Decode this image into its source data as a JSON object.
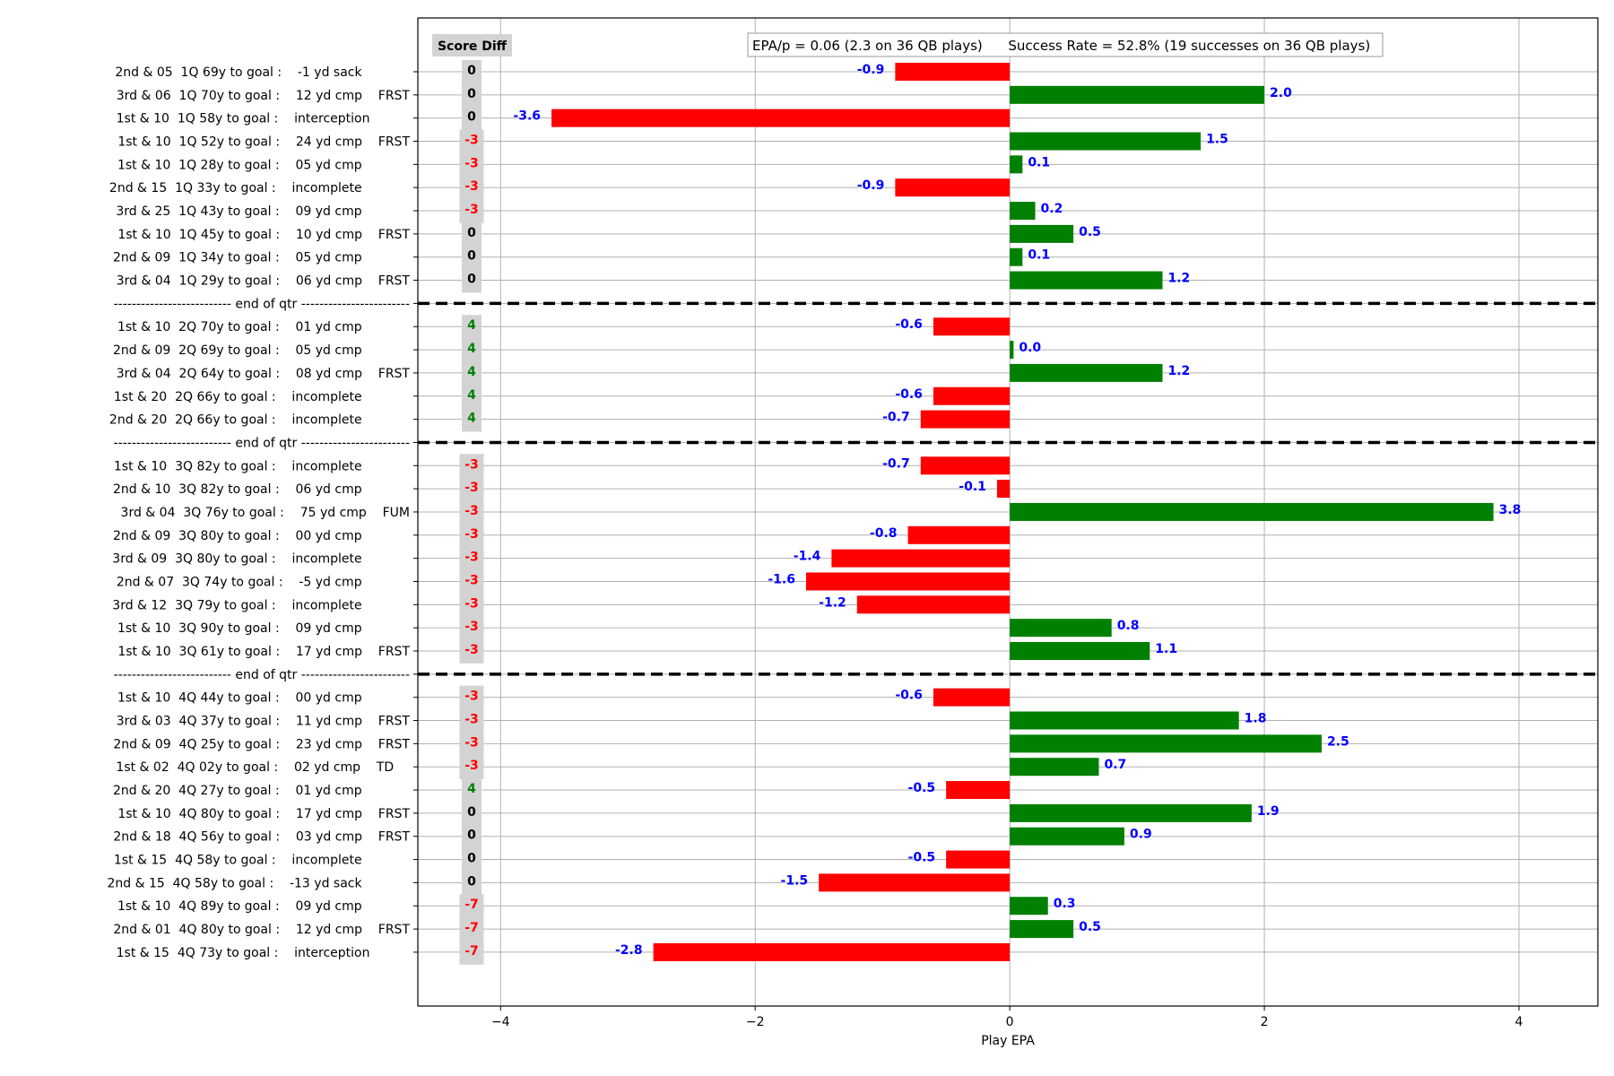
{
  "chart_data": {
    "type": "bar",
    "orientation": "horizontal",
    "xlabel": "Play EPA",
    "xlim": [
      -4.65,
      4.62
    ],
    "xticks": [
      -4,
      -2,
      0,
      2,
      4
    ],
    "xtick_labels": [
      "−4",
      "−2",
      "0",
      "2",
      "4"
    ],
    "grid": true,
    "score_diff_header": "Score Diff",
    "summary": "EPA/p = 0.06 (2.3 on 36 QB plays)      Success Rate = 52.8% (19 successes on 36 QB plays)",
    "colors": {
      "positive_bar": "#008000",
      "negative_bar": "#ff0000",
      "value_label": "#0000ff",
      "score_positive": "#008000",
      "score_negative": "#ff0000",
      "score_zero": "#000000",
      "score_box": "#d3d3d3",
      "separator_line": "#000000"
    },
    "rows": [
      {
        "type": "play",
        "label": "2nd & 05  1Q 69y to goal :    -1 yd sack            ",
        "epa": -0.9,
        "value_label": "-0.9",
        "score_diff": "0"
      },
      {
        "type": "play",
        "label": "3rd & 06  1Q 70y to goal :    12 yd cmp    FRST",
        "epa": 2.0,
        "value_label": "2.0",
        "score_diff": "0"
      },
      {
        "type": "play",
        "label": "1st & 10  1Q 58y to goal :    interception          ",
        "epa": -3.6,
        "value_label": "-3.6",
        "score_diff": "0"
      },
      {
        "type": "play",
        "label": "1st & 10  1Q 52y to goal :    24 yd cmp    FRST",
        "epa": 1.5,
        "value_label": "1.5",
        "score_diff": "-3"
      },
      {
        "type": "play",
        "label": "1st & 10  1Q 28y to goal :    05 yd cmp            ",
        "epa": 0.1,
        "value_label": "0.1",
        "score_diff": "-3"
      },
      {
        "type": "play",
        "label": "2nd & 15  1Q 33y to goal :    incomplete            ",
        "epa": -0.9,
        "value_label": "-0.9",
        "score_diff": "-3"
      },
      {
        "type": "play",
        "label": "3rd & 25  1Q 43y to goal :    09 yd cmp            ",
        "epa": 0.2,
        "value_label": "0.2",
        "score_diff": "-3"
      },
      {
        "type": "play",
        "label": "1st & 10  1Q 45y to goal :    10 yd cmp    FRST",
        "epa": 0.5,
        "value_label": "0.5",
        "score_diff": "0"
      },
      {
        "type": "play",
        "label": "2nd & 09  1Q 34y to goal :    05 yd cmp            ",
        "epa": 0.1,
        "value_label": "0.1",
        "score_diff": "0"
      },
      {
        "type": "play",
        "label": "3rd & 04  1Q 29y to goal :    06 yd cmp    FRST",
        "epa": 1.2,
        "value_label": "1.2",
        "score_diff": "0"
      },
      {
        "type": "separator",
        "label": "-------------------------- end of qtr ------------------------"
      },
      {
        "type": "play",
        "label": "1st & 10  2Q 70y to goal :    01 yd cmp            ",
        "epa": -0.6,
        "value_label": "-0.6",
        "score_diff": "4"
      },
      {
        "type": "play",
        "label": "2nd & 09  2Q 69y to goal :    05 yd cmp            ",
        "epa": 0.03,
        "value_label": "0.0",
        "score_diff": "4"
      },
      {
        "type": "play",
        "label": "3rd & 04  2Q 64y to goal :    08 yd cmp    FRST",
        "epa": 1.2,
        "value_label": "1.2",
        "score_diff": "4"
      },
      {
        "type": "play",
        "label": "1st & 20  2Q 66y to goal :    incomplete            ",
        "epa": -0.6,
        "value_label": "-0.6",
        "score_diff": "4"
      },
      {
        "type": "play",
        "label": "2nd & 20  2Q 66y to goal :    incomplete            ",
        "epa": -0.7,
        "value_label": "-0.7",
        "score_diff": "4"
      },
      {
        "type": "separator",
        "label": "-------------------------- end of qtr ------------------------"
      },
      {
        "type": "play",
        "label": "1st & 10  3Q 82y to goal :    incomplete            ",
        "epa": -0.7,
        "value_label": "-0.7",
        "score_diff": "-3"
      },
      {
        "type": "play",
        "label": "2nd & 10  3Q 82y to goal :    06 yd cmp            ",
        "epa": -0.1,
        "value_label": "-0.1",
        "score_diff": "-3"
      },
      {
        "type": "play",
        "label": "3rd & 04  3Q 76y to goal :    75 yd cmp    FUM",
        "epa": 3.8,
        "value_label": "3.8",
        "score_diff": "-3"
      },
      {
        "type": "play",
        "label": "2nd & 09  3Q 80y to goal :    00 yd cmp            ",
        "epa": -0.8,
        "value_label": "-0.8",
        "score_diff": "-3"
      },
      {
        "type": "play",
        "label": "3rd & 09  3Q 80y to goal :    incomplete            ",
        "epa": -1.4,
        "value_label": "-1.4",
        "score_diff": "-3"
      },
      {
        "type": "play",
        "label": "2nd & 07  3Q 74y to goal :    -5 yd cmp            ",
        "epa": -1.6,
        "value_label": "-1.6",
        "score_diff": "-3"
      },
      {
        "type": "play",
        "label": "3rd & 12  3Q 79y to goal :    incomplete            ",
        "epa": -1.2,
        "value_label": "-1.2",
        "score_diff": "-3"
      },
      {
        "type": "play",
        "label": "1st & 10  3Q 90y to goal :    09 yd cmp            ",
        "epa": 0.8,
        "value_label": "0.8",
        "score_diff": "-3"
      },
      {
        "type": "play",
        "label": "1st & 10  3Q 61y to goal :    17 yd cmp    FRST",
        "epa": 1.1,
        "value_label": "1.1",
        "score_diff": "-3"
      },
      {
        "type": "separator",
        "label": "-------------------------- end of qtr ------------------------"
      },
      {
        "type": "play",
        "label": "1st & 10  4Q 44y to goal :    00 yd cmp            ",
        "epa": -0.6,
        "value_label": "-0.6",
        "score_diff": "-3"
      },
      {
        "type": "play",
        "label": "3rd & 03  4Q 37y to goal :    11 yd cmp    FRST",
        "epa": 1.8,
        "value_label": "1.8",
        "score_diff": "-3"
      },
      {
        "type": "play",
        "label": "2nd & 09  4Q 25y to goal :    23 yd cmp    FRST",
        "epa": 2.45,
        "value_label": "2.5",
        "score_diff": "-3"
      },
      {
        "type": "play",
        "label": "1st & 02  4Q 02y to goal :    02 yd cmp    TD    ",
        "epa": 0.7,
        "value_label": "0.7",
        "score_diff": "-3"
      },
      {
        "type": "play",
        "label": "2nd & 20  4Q 27y to goal :    01 yd cmp            ",
        "epa": -0.5,
        "value_label": "-0.5",
        "score_diff": "4"
      },
      {
        "type": "play",
        "label": "1st & 10  4Q 80y to goal :    17 yd cmp    FRST",
        "epa": 1.9,
        "value_label": "1.9",
        "score_diff": "0"
      },
      {
        "type": "play",
        "label": "2nd & 18  4Q 56y to goal :    03 yd cmp    FRST",
        "epa": 0.9,
        "value_label": "0.9",
        "score_diff": "0"
      },
      {
        "type": "play",
        "label": "1st & 15  4Q 58y to goal :    incomplete            ",
        "epa": -0.5,
        "value_label": "-0.5",
        "score_diff": "0"
      },
      {
        "type": "play",
        "label": "2nd & 15  4Q 58y to goal :    -13 yd sack            ",
        "epa": -1.5,
        "value_label": "-1.5",
        "score_diff": "0"
      },
      {
        "type": "play",
        "label": "1st & 10  4Q 89y to goal :    09 yd cmp            ",
        "epa": 0.3,
        "value_label": "0.3",
        "score_diff": "-7"
      },
      {
        "type": "play",
        "label": "2nd & 01  4Q 80y to goal :    12 yd cmp    FRST",
        "epa": 0.5,
        "value_label": "0.5",
        "score_diff": "-7"
      },
      {
        "type": "play",
        "label": "1st & 15  4Q 73y to goal :    interception          ",
        "epa": -2.8,
        "value_label": "-2.8",
        "score_diff": "-7"
      }
    ]
  }
}
